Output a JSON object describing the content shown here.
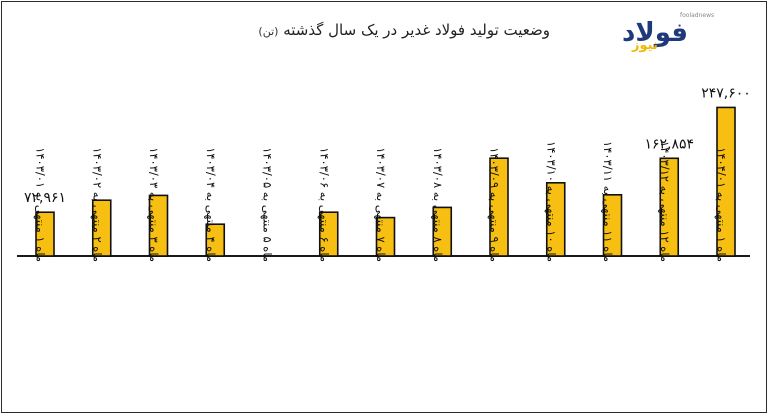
{
  "logo": {
    "text": "فولاد",
    "sub": "نیوز",
    "tag": "fooladnews"
  },
  "chart_data": {
    "type": "bar",
    "title": "وضعیت تولید فولاد غدیر در یک سال گذشته",
    "unit": "(تن)",
    "xlabel": "",
    "ylabel": "",
    "grid": false,
    "ylim": [
      0,
      250000
    ],
    "categories": [
      "ماه ۱ منتهی به ۱۴۰۳/۰۱",
      "ماه ۲ منتهی به ۱۴۰۳/۰۲",
      "ماه ۳ منتهی به ۱۴۰۳/۰۳",
      "ماه ۴ منتهی به ۱۴۰۳/۰۴",
      "ماه ۵ منتهی به ۱۴۰۳/۰۵",
      "ماه ۶ منتهی به ۱۴۰۳/۰۶",
      "ماه ۷ منتهی به ۱۴۰۳/۰۷",
      "ماه ۸ منتهی به ۱۴۰۳/۰۸",
      "ماه ۹ منتهی به ۱۴۰۳/۰۹",
      "ماه ۱۰ منتهی به ۱۴۰۳/۱۰",
      "ماه ۱۱ منتهی به ۱۴۰۳/۱۱",
      "ماه ۱۲ منتهی به ۱۴۰۳/۱۲",
      "ماه ۱ منتهی به ۱۴۰۴/۰۱"
    ],
    "values": [
      72961,
      93000,
      101000,
      53000,
      0,
      73000,
      64000,
      81000,
      163000,
      122000,
      102000,
      162854,
      247600
    ],
    "data_labels": [
      "۷۲,۹۶۱",
      "",
      "",
      "",
      "",
      "",
      "",
      "",
      "",
      "",
      "",
      "۱۶۲,۸۵۴",
      "۲۴۷,۶۰۰"
    ],
    "bar_color": "#f7bf12",
    "bar_stroke": "#111111"
  }
}
